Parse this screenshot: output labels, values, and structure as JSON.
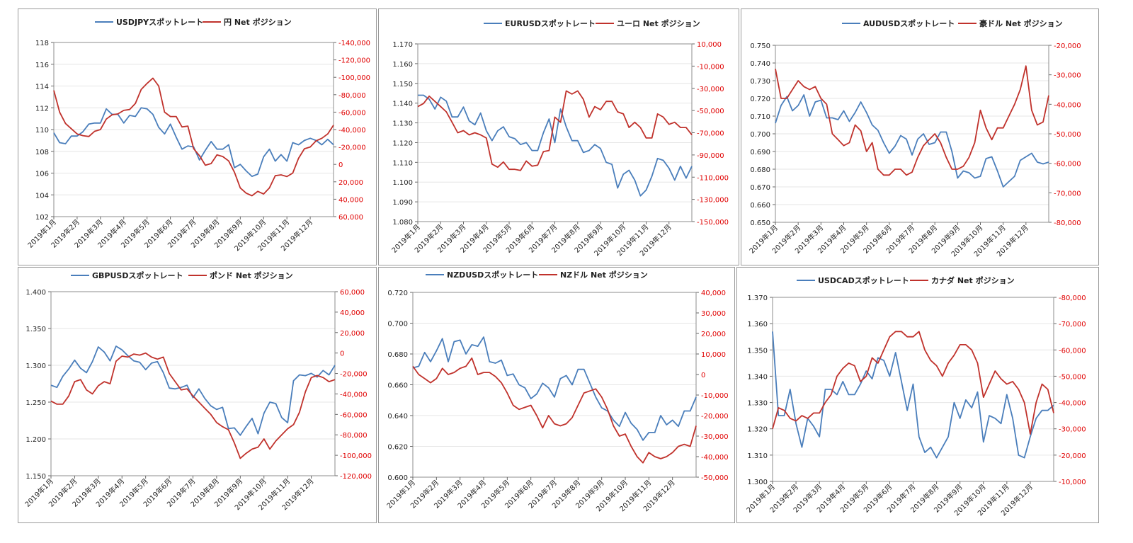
{
  "colors": {
    "spot": "#4a7ebb",
    "net": "#c0322c",
    "right_axis": "#e00000",
    "plot_border": "#8c8c8c",
    "grid": "#e6e6e6"
  },
  "months": [
    "2019年1月",
    "2019年2月",
    "2019年3月",
    "2019年4月",
    "2019年5月",
    "2019年6月",
    "2019年7月",
    "2019年8月",
    "2019年9月",
    "2019年10月",
    "2019年11月",
    "2019年12月"
  ],
  "chart_data": [
    {
      "type": "line",
      "legend": [
        "USDJPYスポットレート",
        "円 Net ポジション"
      ],
      "y1_ticks": [
        "118",
        "116",
        "114",
        "112",
        "110",
        "108",
        "106",
        "104",
        "102"
      ],
      "y1lim": [
        102,
        118
      ],
      "y2_ticks": [
        "-140,000",
        "-120,000",
        "-100,000",
        "-80,000",
        "-60,000",
        "-40,000",
        "-20,000",
        "0",
        "20,000",
        "40,000",
        "60,000"
      ],
      "y2lim": [
        -140000,
        60000
      ],
      "y2_inverted": true,
      "series": [
        {
          "name": "USDJPYスポットレート",
          "axis": "left",
          "values": [
            109.7,
            108.8,
            108.7,
            109.4,
            109.4,
            109.8,
            110.5,
            110.6,
            110.6,
            111.9,
            111.4,
            111.4,
            110.6,
            111.3,
            111.2,
            112.0,
            111.9,
            111.4,
            110.2,
            109.6,
            110.5,
            109.3,
            108.2,
            108.5,
            108.4,
            107.2,
            108.1,
            108.9,
            108.2,
            108.2,
            108.6,
            106.5,
            106.8,
            106.2,
            105.7,
            105.9,
            107.5,
            108.2,
            107.1,
            107.7,
            107.1,
            108.8,
            108.6,
            109.0,
            109.2,
            109.0,
            108.6,
            109.1,
            108.6
          ]
        },
        {
          "name": "円 Net ポジション",
          "axis": "right",
          "values": [
            -85000,
            -60000,
            -47000,
            -41000,
            -35000,
            -33000,
            -32000,
            -38000,
            -40000,
            -52000,
            -57000,
            -58000,
            -62000,
            -63000,
            -70000,
            -86000,
            -93000,
            -99000,
            -90000,
            -60000,
            -55000,
            -55000,
            -43000,
            -44000,
            -18000,
            -10000,
            1000,
            -1000,
            -11000,
            -9000,
            -4000,
            9000,
            27000,
            33000,
            36000,
            31000,
            34000,
            27000,
            13000,
            12000,
            14000,
            10000,
            -7000,
            -18000,
            -20000,
            -27000,
            -30000,
            -35000,
            -45000
          ]
        }
      ]
    },
    {
      "type": "line",
      "legend": [
        "EURUSDスポットレート",
        "ユーロ Net ポジション"
      ],
      "y1_ticks": [
        "1.170",
        "1.160",
        "1.150",
        "1.140",
        "1.130",
        "1.120",
        "1.110",
        "1.100",
        "1.090",
        "1.080"
      ],
      "y1lim": [
        1.08,
        1.17
      ],
      "y2_ticks": [
        "10,000",
        "-10,000",
        "-30,000",
        "-50,000",
        "-70,000",
        "-90,000",
        "-110,000",
        "-130,000",
        "-150,000"
      ],
      "y2lim": [
        -155000,
        15000
      ],
      "y2_inverted": false,
      "series": [
        {
          "name": "EURUSDスポットレート",
          "axis": "left",
          "values": [
            1.144,
            1.144,
            1.142,
            1.137,
            1.143,
            1.141,
            1.133,
            1.133,
            1.138,
            1.131,
            1.129,
            1.135,
            1.126,
            1.121,
            1.126,
            1.128,
            1.123,
            1.122,
            1.119,
            1.12,
            1.116,
            1.116,
            1.125,
            1.132,
            1.12,
            1.137,
            1.128,
            1.121,
            1.121,
            1.115,
            1.116,
            1.119,
            1.117,
            1.11,
            1.109,
            1.097,
            1.104,
            1.106,
            1.101,
            1.093,
            1.096,
            1.103,
            1.112,
            1.111,
            1.107,
            1.101,
            1.108,
            1.102,
            1.108
          ]
        },
        {
          "name": "ユーロ Net ポジション",
          "axis": "right",
          "values": [
            -45000,
            -42000,
            -35000,
            -40000,
            -45000,
            -50000,
            -60000,
            -70000,
            -68000,
            -72000,
            -70000,
            -72000,
            -75000,
            -100000,
            -103000,
            -98000,
            -105000,
            -105000,
            -106000,
            -97000,
            -102000,
            -101000,
            -88000,
            -87000,
            -55000,
            -60000,
            -30000,
            -33000,
            -30000,
            -38000,
            -55000,
            -45000,
            -48000,
            -40000,
            -40000,
            -50000,
            -52000,
            -65000,
            -60000,
            -65000,
            -75000,
            -75000,
            -52000,
            -55000,
            -62000,
            -60000,
            -65000,
            -65000,
            -72000
          ]
        }
      ]
    },
    {
      "type": "line",
      "legend": [
        "AUDUSDスポットレート",
        "豪ドル Net ポジション"
      ],
      "y1_ticks": [
        "0.750",
        "0.740",
        "0.730",
        "0.720",
        "0.710",
        "0.700",
        "0.690",
        "0.680",
        "0.670",
        "0.660",
        "0.650"
      ],
      "y1lim": [
        0.65,
        0.75
      ],
      "y2_ticks": [
        "-20,000",
        "-30,000",
        "-40,000",
        "-50,000",
        "-60,000",
        "-70,000",
        "-80,000"
      ],
      "y2lim": [
        -80000,
        -20000
      ],
      "y2_inverted": false,
      "series": [
        {
          "name": "AUDUSDスポットレート",
          "axis": "left",
          "values": [
            0.706,
            0.716,
            0.721,
            0.713,
            0.716,
            0.722,
            0.71,
            0.718,
            0.719,
            0.709,
            0.709,
            0.708,
            0.713,
            0.707,
            0.712,
            0.718,
            0.712,
            0.705,
            0.702,
            0.695,
            0.689,
            0.693,
            0.699,
            0.697,
            0.688,
            0.697,
            0.7,
            0.694,
            0.695,
            0.701,
            0.701,
            0.69,
            0.675,
            0.679,
            0.678,
            0.675,
            0.676,
            0.686,
            0.687,
            0.679,
            0.67,
            0.673,
            0.676,
            0.685,
            0.687,
            0.689,
            0.684,
            0.683,
            0.684
          ]
        },
        {
          "name": "豪ドル Net ポジション",
          "axis": "right",
          "values": [
            -28000,
            -38000,
            -38000,
            -35000,
            -32000,
            -34000,
            -35000,
            -34000,
            -38000,
            -40000,
            -50000,
            -52000,
            -54000,
            -53000,
            -47000,
            -49000,
            -56000,
            -53000,
            -62000,
            -64000,
            -64000,
            -62000,
            -62000,
            -64000,
            -63000,
            -58000,
            -54000,
            -52000,
            -50000,
            -53000,
            -58000,
            -62000,
            -62000,
            -61000,
            -58000,
            -53000,
            -42000,
            -48000,
            -52000,
            -48000,
            -48000,
            -44000,
            -40000,
            -35000,
            -27000,
            -42000,
            -47000,
            -46000,
            -37000
          ]
        }
      ]
    },
    {
      "type": "line",
      "legend": [
        "GBPUSDスポットレート",
        "ポンド Net ポジション"
      ],
      "y1_ticks": [
        "1.400",
        "1.350",
        "1.300",
        "1.250",
        "1.200",
        "1.150"
      ],
      "y1lim": [
        1.15,
        1.4
      ],
      "y2_ticks": [
        "60,000",
        "40,000",
        "20,000",
        "0",
        "-20,000",
        "-40,000",
        "-60,000",
        "-80,000",
        "-100,000",
        "-120,000"
      ],
      "y2lim": [
        -120000,
        60000
      ],
      "y2_inverted": false,
      "series": [
        {
          "name": "GBPUSDスポットレート",
          "axis": "left",
          "values": [
            1.273,
            1.27,
            1.285,
            1.295,
            1.307,
            1.296,
            1.29,
            1.305,
            1.325,
            1.318,
            1.306,
            1.326,
            1.321,
            1.313,
            1.306,
            1.304,
            1.294,
            1.303,
            1.305,
            1.29,
            1.269,
            1.268,
            1.27,
            1.273,
            1.256,
            1.268,
            1.255,
            1.245,
            1.24,
            1.243,
            1.214,
            1.215,
            1.205,
            1.217,
            1.228,
            1.207,
            1.235,
            1.25,
            1.248,
            1.229,
            1.222,
            1.279,
            1.287,
            1.286,
            1.289,
            1.284,
            1.293,
            1.287,
            1.3
          ]
        },
        {
          "name": "ポンド Net ポジション",
          "axis": "right",
          "values": [
            -47000,
            -50000,
            -50000,
            -42000,
            -28000,
            -26000,
            -36000,
            -40000,
            -32000,
            -28000,
            -30000,
            -8000,
            -3000,
            -4000,
            -1000,
            -2000,
            0,
            -4000,
            -6000,
            -4000,
            -20000,
            -28000,
            -36000,
            -35000,
            -42000,
            -48000,
            -54000,
            -60000,
            -68000,
            -72000,
            -75000,
            -88000,
            -103000,
            -98000,
            -94000,
            -92000,
            -84000,
            -94000,
            -86000,
            -80000,
            -74000,
            -70000,
            -58000,
            -38000,
            -24000,
            -22000,
            -24000,
            -28000,
            -26000
          ]
        }
      ]
    },
    {
      "type": "line",
      "legend": [
        "NZDUSDスポットレート",
        "NZドル Net ポジション"
      ],
      "y1_ticks": [
        "0.720",
        "0.700",
        "0.680",
        "0.660",
        "0.640",
        "0.620",
        "0.600"
      ],
      "y1lim": [
        0.6,
        0.72
      ],
      "y2_ticks": [
        "40,000",
        "30,000",
        "20,000",
        "10,000",
        "0",
        "-10,000",
        "-20,000",
        "-30,000",
        "-40,000",
        "-50,000"
      ],
      "y2lim": [
        -50000,
        40000
      ],
      "y2_inverted": false,
      "series": [
        {
          "name": "NZDUSDスポットレート",
          "axis": "left",
          "values": [
            0.671,
            0.672,
            0.681,
            0.675,
            0.682,
            0.69,
            0.675,
            0.688,
            0.689,
            0.68,
            0.686,
            0.685,
            0.691,
            0.675,
            0.674,
            0.676,
            0.666,
            0.667,
            0.66,
            0.658,
            0.651,
            0.654,
            0.661,
            0.658,
            0.652,
            0.664,
            0.666,
            0.66,
            0.67,
            0.67,
            0.661,
            0.652,
            0.645,
            0.643,
            0.637,
            0.633,
            0.642,
            0.635,
            0.631,
            0.624,
            0.629,
            0.629,
            0.64,
            0.634,
            0.637,
            0.633,
            0.643,
            0.643,
            0.652
          ]
        },
        {
          "name": "NZドル Net ポジション",
          "axis": "right",
          "values": [
            4000,
            0,
            -2000,
            -4000,
            -2000,
            3000,
            0,
            1000,
            3000,
            4000,
            8000,
            0,
            1000,
            1000,
            -1000,
            -4000,
            -9000,
            -15000,
            -17000,
            -16000,
            -15000,
            -20000,
            -26000,
            -20000,
            -24000,
            -25000,
            -24000,
            -21000,
            -15000,
            -9000,
            -8000,
            -7000,
            -11000,
            -17000,
            -25000,
            -30000,
            -29000,
            -35000,
            -40000,
            -43000,
            -38000,
            -40000,
            -41000,
            -40000,
            -38000,
            -35000,
            -34000,
            -35000,
            -25000
          ]
        }
      ]
    },
    {
      "type": "line",
      "legend": [
        "USDCADスポットレート",
        "カナダ Net ポジション"
      ],
      "y1_ticks": [
        "1.370",
        "1.360",
        "1.350",
        "1.340",
        "1.330",
        "1.320",
        "1.310",
        "1.300"
      ],
      "y1lim": [
        1.3,
        1.37
      ],
      "y2_ticks": [
        "-80,000",
        "-70,000",
        "-60,000",
        "-50,000",
        "-40,000",
        "-30,000",
        "-20,000",
        "-10,000"
      ],
      "y2lim": [
        -80000,
        -10000
      ],
      "y2_inverted": true,
      "series": [
        {
          "name": "USDCADスポットレート",
          "axis": "left",
          "values": [
            1.357,
            1.325,
            1.325,
            1.335,
            1.322,
            1.313,
            1.324,
            1.321,
            1.317,
            1.335,
            1.335,
            1.333,
            1.338,
            1.333,
            1.333,
            1.337,
            1.342,
            1.339,
            1.347,
            1.346,
            1.34,
            1.349,
            1.338,
            1.327,
            1.337,
            1.317,
            1.311,
            1.313,
            1.309,
            1.313,
            1.317,
            1.33,
            1.324,
            1.331,
            1.328,
            1.334,
            1.315,
            1.325,
            1.324,
            1.322,
            1.333,
            1.324,
            1.31,
            1.309,
            1.317,
            1.324,
            1.327,
            1.327,
            1.329
          ]
        },
        {
          "name": "カナダ Net ポジション",
          "axis": "right",
          "values": [
            -30000,
            -38000,
            -37000,
            -34000,
            -33000,
            -35000,
            -34000,
            -36000,
            -36000,
            -40000,
            -43000,
            -50000,
            -53000,
            -55000,
            -54000,
            -48000,
            -50000,
            -57000,
            -55000,
            -60000,
            -65000,
            -67000,
            -67000,
            -65000,
            -65000,
            -67000,
            -60000,
            -56000,
            -54000,
            -50000,
            -55000,
            -58000,
            -62000,
            -62000,
            -60000,
            -55000,
            -42000,
            -47000,
            -52000,
            -49000,
            -47000,
            -48000,
            -45000,
            -40000,
            -28000,
            -40000,
            -47000,
            -45000,
            -36000
          ]
        }
      ]
    }
  ]
}
